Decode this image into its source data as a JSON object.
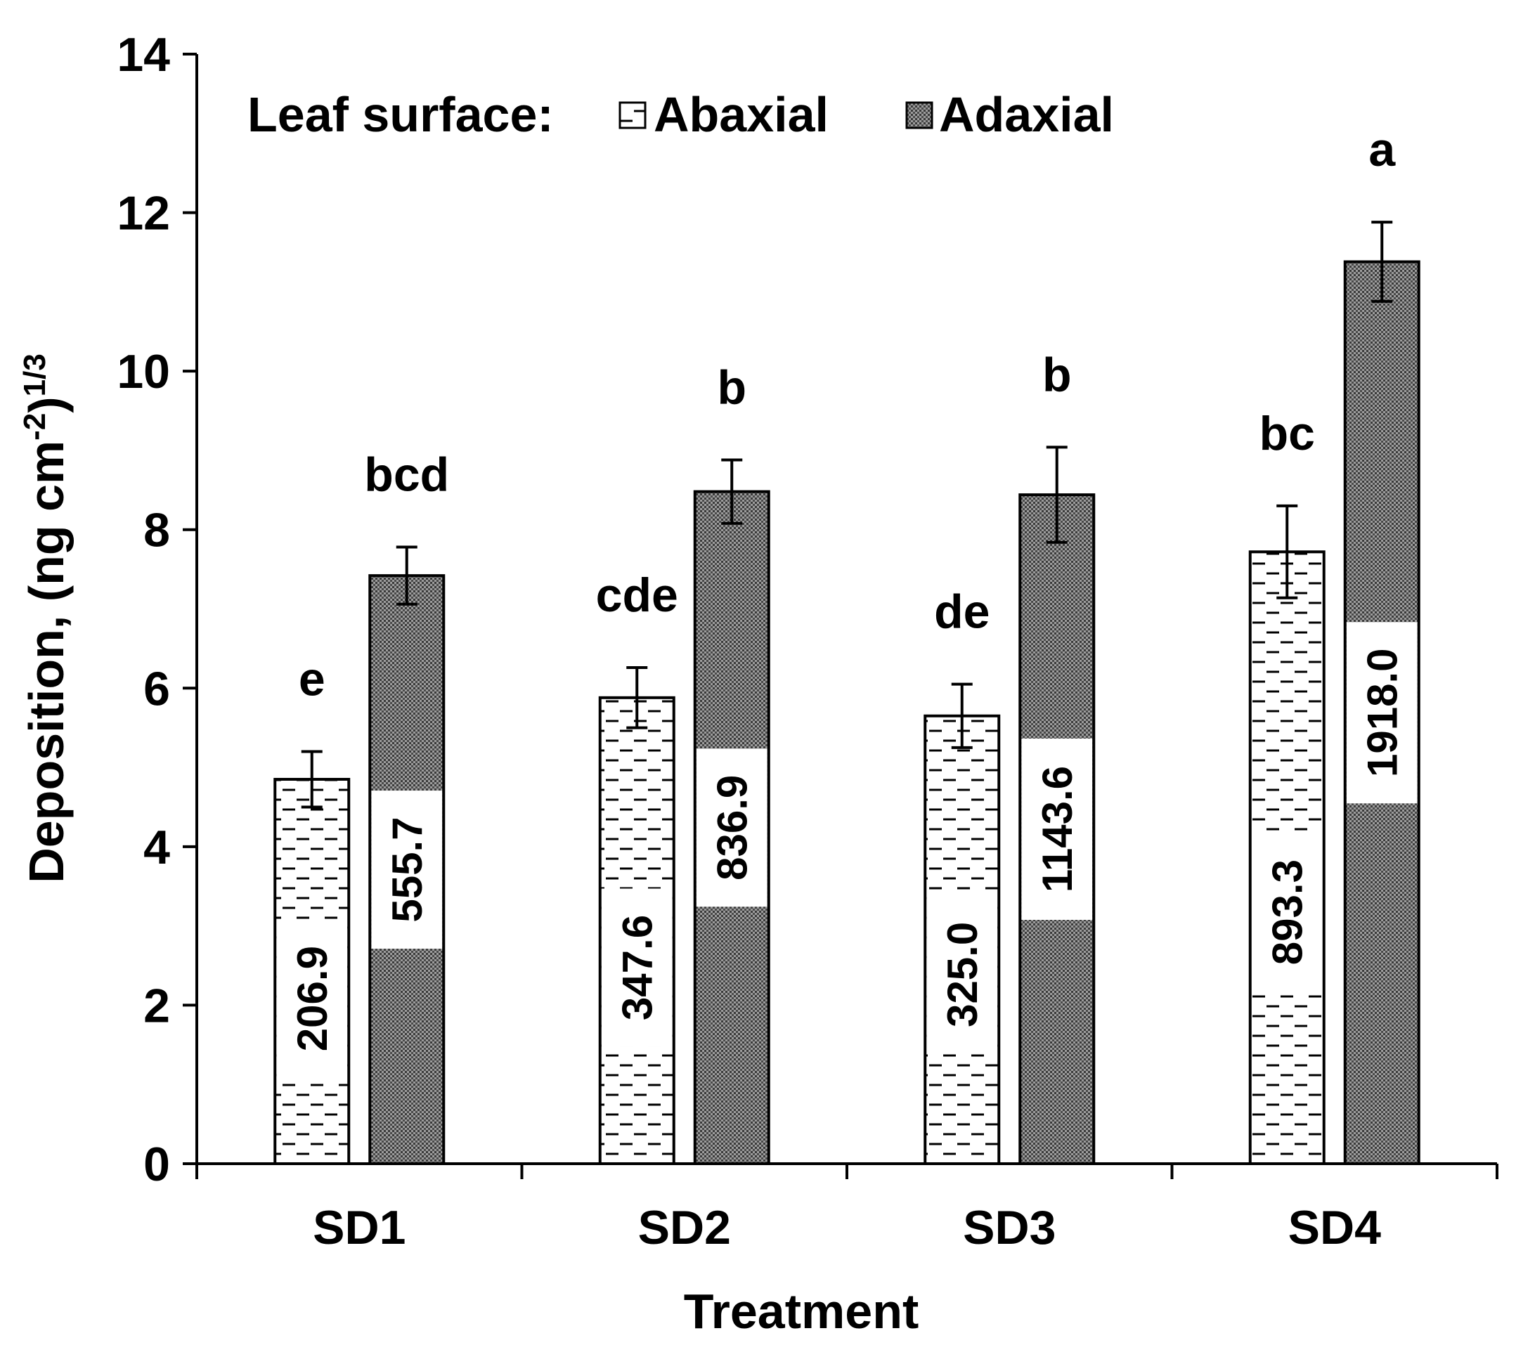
{
  "chart_data": {
    "type": "bar",
    "subtype": "grouped",
    "ylabel": "Deposition, (ng cm",
    "ylabel_sup1": "-2",
    "ylabel_mid": ")",
    "ylabel_sup2": "1/3",
    "xlabel": "Treatment",
    "ylim": [
      0,
      14
    ],
    "yticks": [
      0,
      2,
      4,
      6,
      8,
      10,
      12,
      14
    ],
    "categories": [
      "SD1",
      "SD2",
      "SD3",
      "SD4"
    ],
    "legend": {
      "title": "Leaf surface:",
      "position": "top-left",
      "entries": [
        "Abaxial",
        "Adaxial"
      ]
    },
    "series": [
      {
        "name": "Abaxial",
        "pattern": "dashes",
        "values": [
          4.85,
          5.88,
          5.65,
          7.72
        ],
        "errors": [
          0.35,
          0.38,
          0.4,
          0.58
        ],
        "letters": [
          "e",
          "cde",
          "de",
          "bc"
        ],
        "labels": [
          "206.9",
          "347.6",
          "325.0",
          "893.3"
        ]
      },
      {
        "name": "Adaxial",
        "pattern": "dots",
        "values": [
          7.42,
          8.48,
          8.44,
          11.38
        ],
        "errors": [
          0.36,
          0.4,
          0.6,
          0.5
        ],
        "letters": [
          "bcd",
          "b",
          "b",
          "a"
        ],
        "labels": [
          "555.7",
          "836.9",
          "1143.6",
          "1918.0"
        ]
      }
    ]
  }
}
